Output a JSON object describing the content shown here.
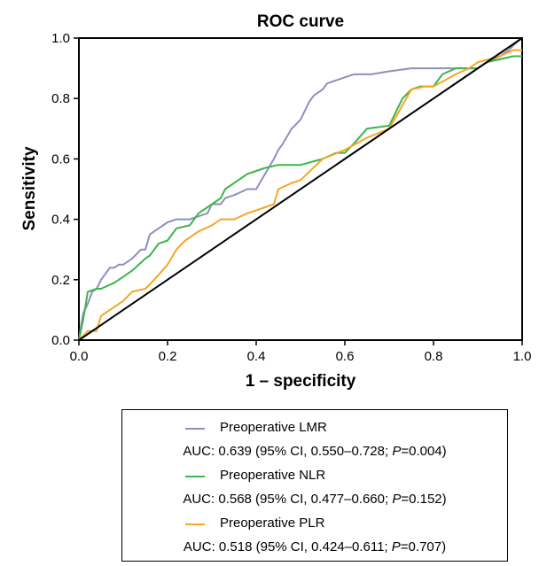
{
  "chart_data": {
    "type": "line",
    "title": "ROC curve",
    "xlabel": "1 – specificity",
    "ylabel": "Sensitivity",
    "xlim": [
      0,
      1
    ],
    "ylim": [
      0,
      1
    ],
    "xticks": [
      "0.0",
      "0.2",
      "0.4",
      "0.6",
      "0.8",
      "1.0"
    ],
    "yticks": [
      "0.0",
      "0.2",
      "0.4",
      "0.6",
      "0.8",
      "1.0"
    ],
    "grid": false,
    "legend_position": "bottom",
    "series": [
      {
        "name": "Preoperative LMR",
        "color": "#8e8fbd",
        "auc_prefix": "AUC: 0.639 (95% CI, 0.550–0.728; ",
        "auc_p": "P",
        "auc_suffix": "=0.004)",
        "x": [
          0,
          0.005,
          0.01,
          0.02,
          0.03,
          0.04,
          0.05,
          0.06,
          0.07,
          0.08,
          0.09,
          0.1,
          0.12,
          0.14,
          0.15,
          0.16,
          0.17,
          0.18,
          0.2,
          0.22,
          0.25,
          0.27,
          0.29,
          0.3,
          0.31,
          0.32,
          0.33,
          0.35,
          0.38,
          0.4,
          0.42,
          0.44,
          0.45,
          0.46,
          0.48,
          0.5,
          0.52,
          0.53,
          0.55,
          0.56,
          0.58,
          0.6,
          0.62,
          0.66,
          0.7,
          0.75,
          0.8,
          0.85,
          0.88,
          0.9,
          0.92,
          0.95,
          0.97,
          0.99,
          1.0
        ],
        "y": [
          0,
          0.05,
          0.09,
          0.12,
          0.16,
          0.17,
          0.2,
          0.22,
          0.24,
          0.24,
          0.25,
          0.25,
          0.27,
          0.3,
          0.3,
          0.35,
          0.36,
          0.37,
          0.39,
          0.4,
          0.4,
          0.41,
          0.42,
          0.45,
          0.45,
          0.45,
          0.47,
          0.48,
          0.5,
          0.5,
          0.55,
          0.6,
          0.63,
          0.65,
          0.7,
          0.73,
          0.79,
          0.81,
          0.83,
          0.85,
          0.86,
          0.87,
          0.88,
          0.88,
          0.89,
          0.9,
          0.9,
          0.9,
          0.9,
          0.9,
          0.92,
          0.94,
          0.96,
          0.99,
          1.0
        ]
      },
      {
        "name": "Preoperative NLR",
        "color": "#3cb54a",
        "auc_prefix": "AUC: 0.568 (95% CI, 0.477–0.660; ",
        "auc_p": "P",
        "auc_suffix": "=0.152)",
        "x": [
          0,
          0.01,
          0.02,
          0.04,
          0.05,
          0.08,
          0.1,
          0.12,
          0.15,
          0.16,
          0.18,
          0.2,
          0.22,
          0.25,
          0.27,
          0.3,
          0.32,
          0.33,
          0.35,
          0.38,
          0.4,
          0.42,
          0.45,
          0.5,
          0.55,
          0.58,
          0.6,
          0.62,
          0.65,
          0.7,
          0.73,
          0.75,
          0.77,
          0.8,
          0.82,
          0.85,
          0.88,
          0.9,
          0.92,
          0.95,
          0.98,
          1.0
        ],
        "y": [
          0,
          0.07,
          0.16,
          0.17,
          0.17,
          0.19,
          0.21,
          0.23,
          0.27,
          0.28,
          0.32,
          0.33,
          0.37,
          0.38,
          0.42,
          0.45,
          0.47,
          0.5,
          0.52,
          0.55,
          0.56,
          0.57,
          0.58,
          0.58,
          0.6,
          0.62,
          0.62,
          0.65,
          0.7,
          0.71,
          0.8,
          0.83,
          0.84,
          0.84,
          0.88,
          0.9,
          0.9,
          0.9,
          0.92,
          0.93,
          0.94,
          0.94
        ]
      },
      {
        "name": "Preoperative PLR",
        "color": "#f5a623",
        "auc_prefix": "AUC: 0.518 (95% CI, 0.424–0.611; ",
        "auc_p": "P",
        "auc_suffix": "=0.707)",
        "x": [
          0,
          0.02,
          0.04,
          0.05,
          0.07,
          0.1,
          0.12,
          0.15,
          0.17,
          0.2,
          0.22,
          0.24,
          0.27,
          0.3,
          0.32,
          0.35,
          0.38,
          0.4,
          0.44,
          0.45,
          0.48,
          0.5,
          0.55,
          0.6,
          0.65,
          0.7,
          0.75,
          0.78,
          0.8,
          0.85,
          0.88,
          0.9,
          0.95,
          0.98,
          1.0
        ],
        "y": [
          0,
          0.03,
          0.03,
          0.08,
          0.1,
          0.13,
          0.16,
          0.17,
          0.2,
          0.25,
          0.3,
          0.33,
          0.36,
          0.38,
          0.4,
          0.4,
          0.42,
          0.43,
          0.45,
          0.5,
          0.52,
          0.53,
          0.6,
          0.63,
          0.67,
          0.7,
          0.83,
          0.84,
          0.84,
          0.88,
          0.9,
          0.92,
          0.94,
          0.96,
          0.96
        ]
      }
    ],
    "reference_line": {
      "color": "#000000",
      "x": [
        0,
        1
      ],
      "y": [
        0,
        1
      ]
    }
  }
}
